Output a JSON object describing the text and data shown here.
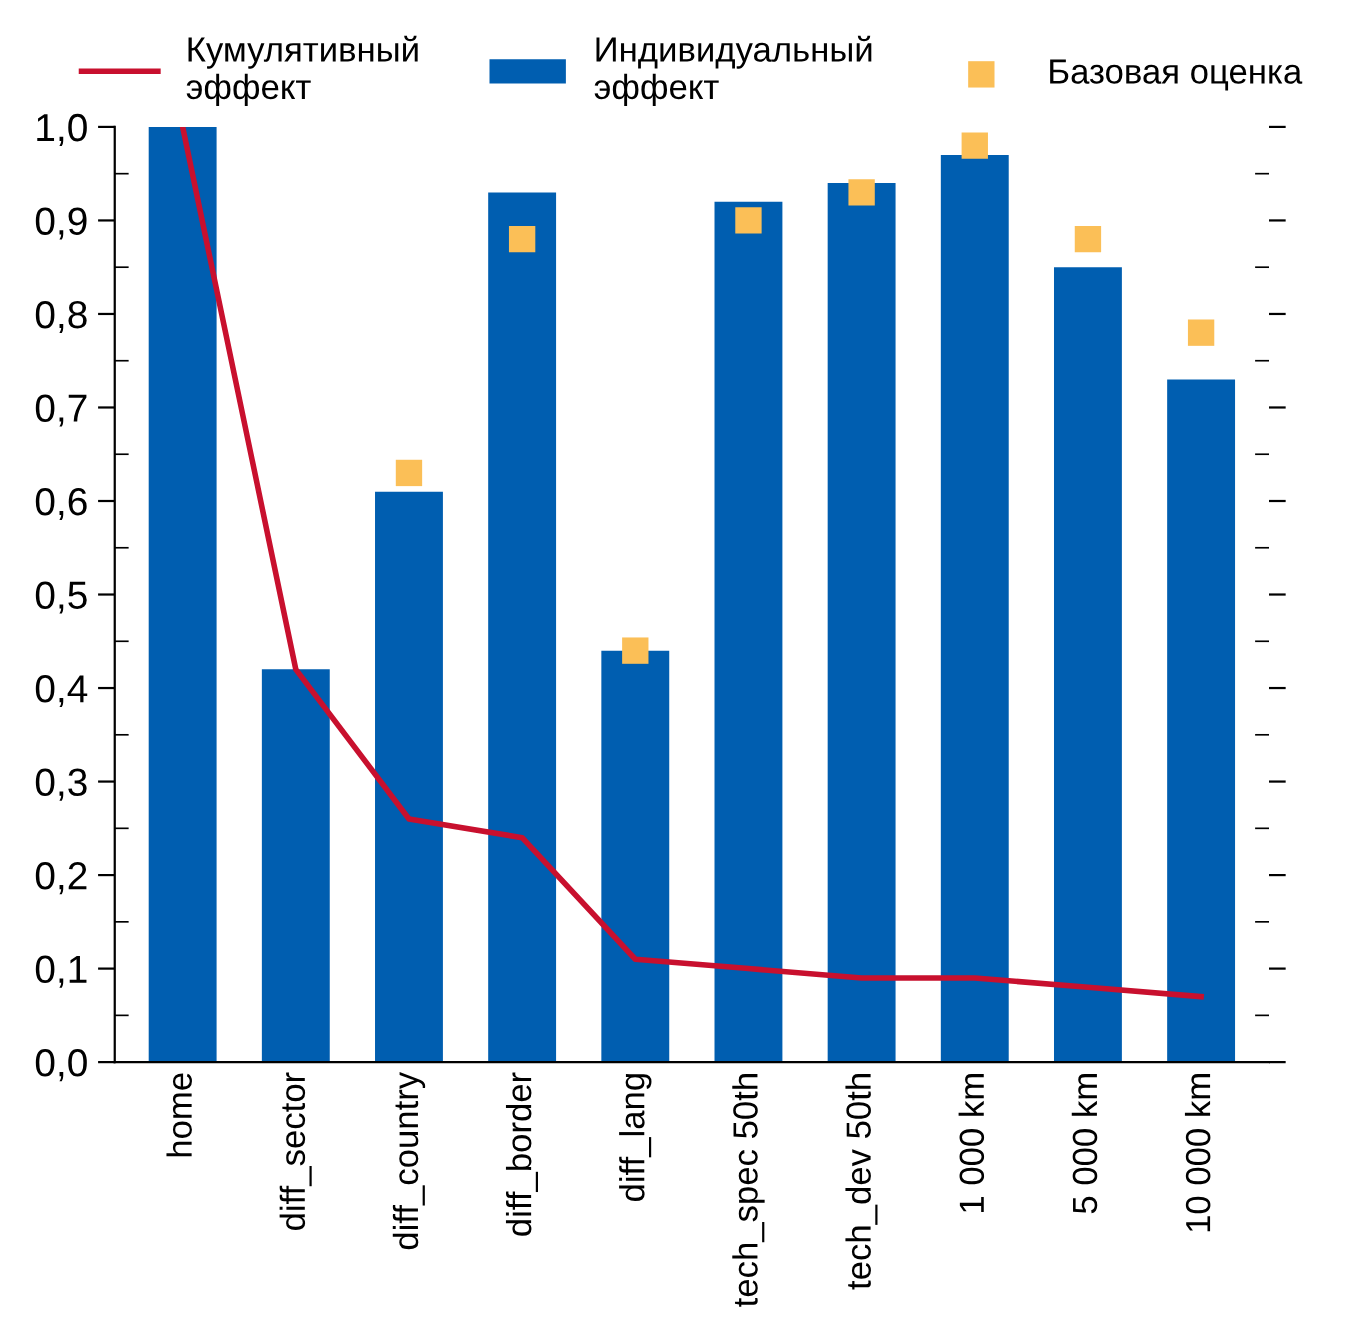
{
  "chart_data": {
    "type": "bar",
    "categories": [
      "home",
      "diff_sector",
      "diff_country",
      "diff_border",
      "diff_lang",
      "tech_spec 50th",
      "tech_dev 50th",
      "1 000 km",
      "5 000 km",
      "10 000 km"
    ],
    "series": [
      {
        "name": "Кумулятивный\nэффект",
        "type": "line",
        "color": "#c8102e",
        "values": [
          1.0,
          0.42,
          0.26,
          0.24,
          0.11,
          0.1,
          0.09,
          0.09,
          0.08,
          0.07
        ]
      },
      {
        "name": "Индивидуальный\nэффект",
        "color": "#005eb0",
        "values": [
          1.0,
          0.42,
          0.61,
          0.93,
          0.44,
          0.92,
          0.94,
          0.97,
          0.85,
          0.73
        ]
      },
      {
        "name": "Базовая оценка",
        "type": "scatter",
        "color": "#fbbf57",
        "marker": "square",
        "values": [
          null,
          null,
          0.63,
          0.88,
          0.44,
          0.9,
          0.93,
          0.98,
          0.88,
          0.78
        ]
      }
    ],
    "ylim": [
      0,
      1.0
    ],
    "yticks": [
      {
        "value": 0,
        "label": "0,0"
      },
      {
        "value": 0.1,
        "label": "0,1"
      },
      {
        "value": 0.2,
        "label": "0,2"
      },
      {
        "value": 0.3,
        "label": "0,3"
      },
      {
        "value": 0.4,
        "label": "0,4"
      },
      {
        "value": 0.5,
        "label": "0,5"
      },
      {
        "value": 0.6,
        "label": "0,6"
      },
      {
        "value": 0.7,
        "label": "0,7"
      },
      {
        "value": 0.8,
        "label": "0,8"
      },
      {
        "value": 0.9,
        "label": "0,9"
      },
      {
        "value": 1.0,
        "label": "1,0"
      }
    ],
    "legend": "top",
    "grid": false
  }
}
